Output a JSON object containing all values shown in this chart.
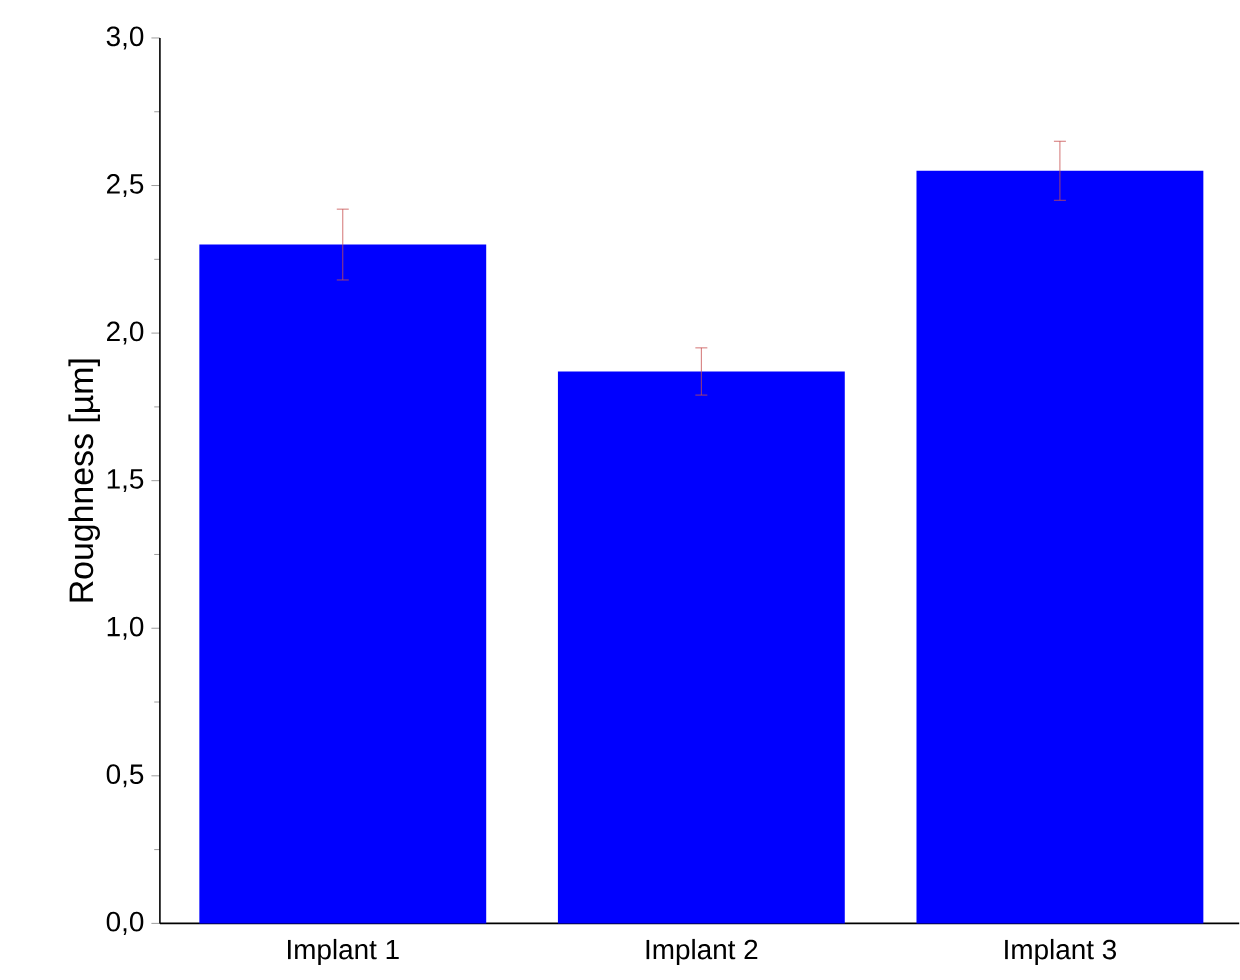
{
  "chart_data": {
    "type": "bar",
    "ylabel": "Roughness [µm]",
    "categories": [
      "Implant 1",
      "Implant 2",
      "Implant 3"
    ],
    "values": [
      2.3,
      1.87,
      2.55
    ],
    "errors": [
      0.12,
      0.08,
      0.1
    ],
    "color": "#0000ff",
    "ylim": [
      0,
      3
    ],
    "yticks": [
      {
        "value": 0,
        "label": "0,0"
      },
      {
        "value": 0.5,
        "label": "0,5"
      },
      {
        "value": 1,
        "label": "1,0"
      },
      {
        "value": 1.5,
        "label": "1,5"
      },
      {
        "value": 2,
        "label": "2,0"
      },
      {
        "value": 2.5,
        "label": "2,5"
      },
      {
        "value": 3,
        "label": "3,0"
      }
    ],
    "grid": false
  }
}
